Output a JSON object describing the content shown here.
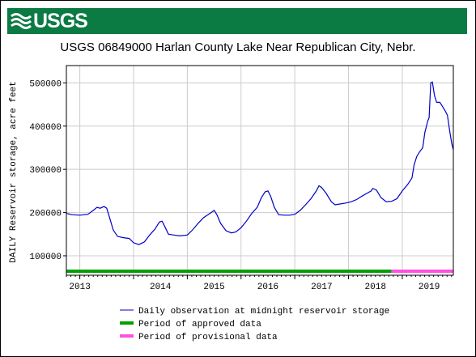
{
  "header": {
    "logo_text": "USGS",
    "brand_color": "#0b7a43"
  },
  "chart_data": {
    "type": "line",
    "title": "USGS 06849000 Harlan County Lake Near Republican City, Nebr.",
    "xlabel": "",
    "ylabel": "DAILY Reservoir storage, acre feet",
    "xlim": [
      2012.75,
      2019.95
    ],
    "ylim": [
      55000,
      540000
    ],
    "x_tick_labels": [
      "2013",
      "2014",
      "2015",
      "2016",
      "2017",
      "2018",
      "2019"
    ],
    "y_ticks": [
      100000,
      200000,
      300000,
      400000,
      500000
    ],
    "y_tick_labels": [
      "100000",
      "200000",
      "300000",
      "400000",
      "500000"
    ],
    "grid": true,
    "series": [
      {
        "name": "Daily observation at midnight reservoir storage",
        "color": "#0000c8",
        "points": [
          [
            2012.75,
            198000
          ],
          [
            2012.85,
            195000
          ],
          [
            2013.0,
            194000
          ],
          [
            2013.15,
            196000
          ],
          [
            2013.25,
            205000
          ],
          [
            2013.32,
            212000
          ],
          [
            2013.38,
            210000
          ],
          [
            2013.45,
            214000
          ],
          [
            2013.5,
            210000
          ],
          [
            2013.55,
            190000
          ],
          [
            2013.62,
            160000
          ],
          [
            2013.7,
            145000
          ],
          [
            2013.8,
            142000
          ],
          [
            2013.92,
            140000
          ],
          [
            2014.0,
            130000
          ],
          [
            2014.1,
            126000
          ],
          [
            2014.2,
            132000
          ],
          [
            2014.3,
            148000
          ],
          [
            2014.4,
            162000
          ],
          [
            2014.48,
            178000
          ],
          [
            2014.53,
            180000
          ],
          [
            2014.58,
            168000
          ],
          [
            2014.65,
            150000
          ],
          [
            2014.75,
            148000
          ],
          [
            2014.85,
            146000
          ],
          [
            2015.0,
            148000
          ],
          [
            2015.1,
            160000
          ],
          [
            2015.2,
            175000
          ],
          [
            2015.3,
            188000
          ],
          [
            2015.42,
            198000
          ],
          [
            2015.5,
            205000
          ],
          [
            2015.55,
            195000
          ],
          [
            2015.62,
            175000
          ],
          [
            2015.72,
            158000
          ],
          [
            2015.82,
            153000
          ],
          [
            2015.9,
            155000
          ],
          [
            2016.0,
            165000
          ],
          [
            2016.1,
            180000
          ],
          [
            2016.2,
            198000
          ],
          [
            2016.3,
            212000
          ],
          [
            2016.38,
            235000
          ],
          [
            2016.45,
            248000
          ],
          [
            2016.5,
            250000
          ],
          [
            2016.55,
            238000
          ],
          [
            2016.62,
            212000
          ],
          [
            2016.7,
            195000
          ],
          [
            2016.8,
            194000
          ],
          [
            2016.9,
            194000
          ],
          [
            2017.0,
            196000
          ],
          [
            2017.1,
            205000
          ],
          [
            2017.2,
            218000
          ],
          [
            2017.3,
            232000
          ],
          [
            2017.4,
            250000
          ],
          [
            2017.45,
            262000
          ],
          [
            2017.5,
            258000
          ],
          [
            2017.58,
            245000
          ],
          [
            2017.68,
            225000
          ],
          [
            2017.75,
            218000
          ],
          [
            2017.85,
            220000
          ],
          [
            2017.95,
            222000
          ],
          [
            2018.05,
            225000
          ],
          [
            2018.15,
            230000
          ],
          [
            2018.25,
            238000
          ],
          [
            2018.35,
            245000
          ],
          [
            2018.42,
            250000
          ],
          [
            2018.45,
            256000
          ],
          [
            2018.52,
            252000
          ],
          [
            2018.6,
            235000
          ],
          [
            2018.7,
            225000
          ],
          [
            2018.8,
            226000
          ],
          [
            2018.9,
            232000
          ],
          [
            2019.0,
            250000
          ],
          [
            2019.1,
            265000
          ],
          [
            2019.18,
            280000
          ],
          [
            2019.22,
            310000
          ],
          [
            2019.27,
            330000
          ],
          [
            2019.32,
            340000
          ],
          [
            2019.38,
            350000
          ],
          [
            2019.42,
            385000
          ],
          [
            2019.47,
            410000
          ],
          [
            2019.5,
            420000
          ],
          [
            2019.53,
            500000
          ],
          [
            2019.56,
            502000
          ],
          [
            2019.6,
            470000
          ],
          [
            2019.64,
            455000
          ],
          [
            2019.7,
            455000
          ],
          [
            2019.75,
            445000
          ],
          [
            2019.8,
            435000
          ],
          [
            2019.84,
            425000
          ],
          [
            2019.88,
            390000
          ],
          [
            2019.92,
            360000
          ],
          [
            2019.95,
            345000
          ]
        ]
      }
    ],
    "periods": [
      {
        "name": "Period of approved data",
        "color": "#00a000",
        "from": 2012.75,
        "to": 2018.8
      },
      {
        "name": "Period of provisional data",
        "color": "#ff50e0",
        "from": 2018.8,
        "to": 2019.95
      }
    ],
    "legend": {
      "placement": "bottom",
      "entries": [
        {
          "label": "Daily observation at midnight reservoir storage",
          "color": "#0000c8",
          "style": "thin"
        },
        {
          "label": "Period of approved data",
          "color": "#00a000",
          "style": "thick"
        },
        {
          "label": "Period of provisional data",
          "color": "#ff50e0",
          "style": "thick"
        }
      ]
    }
  }
}
